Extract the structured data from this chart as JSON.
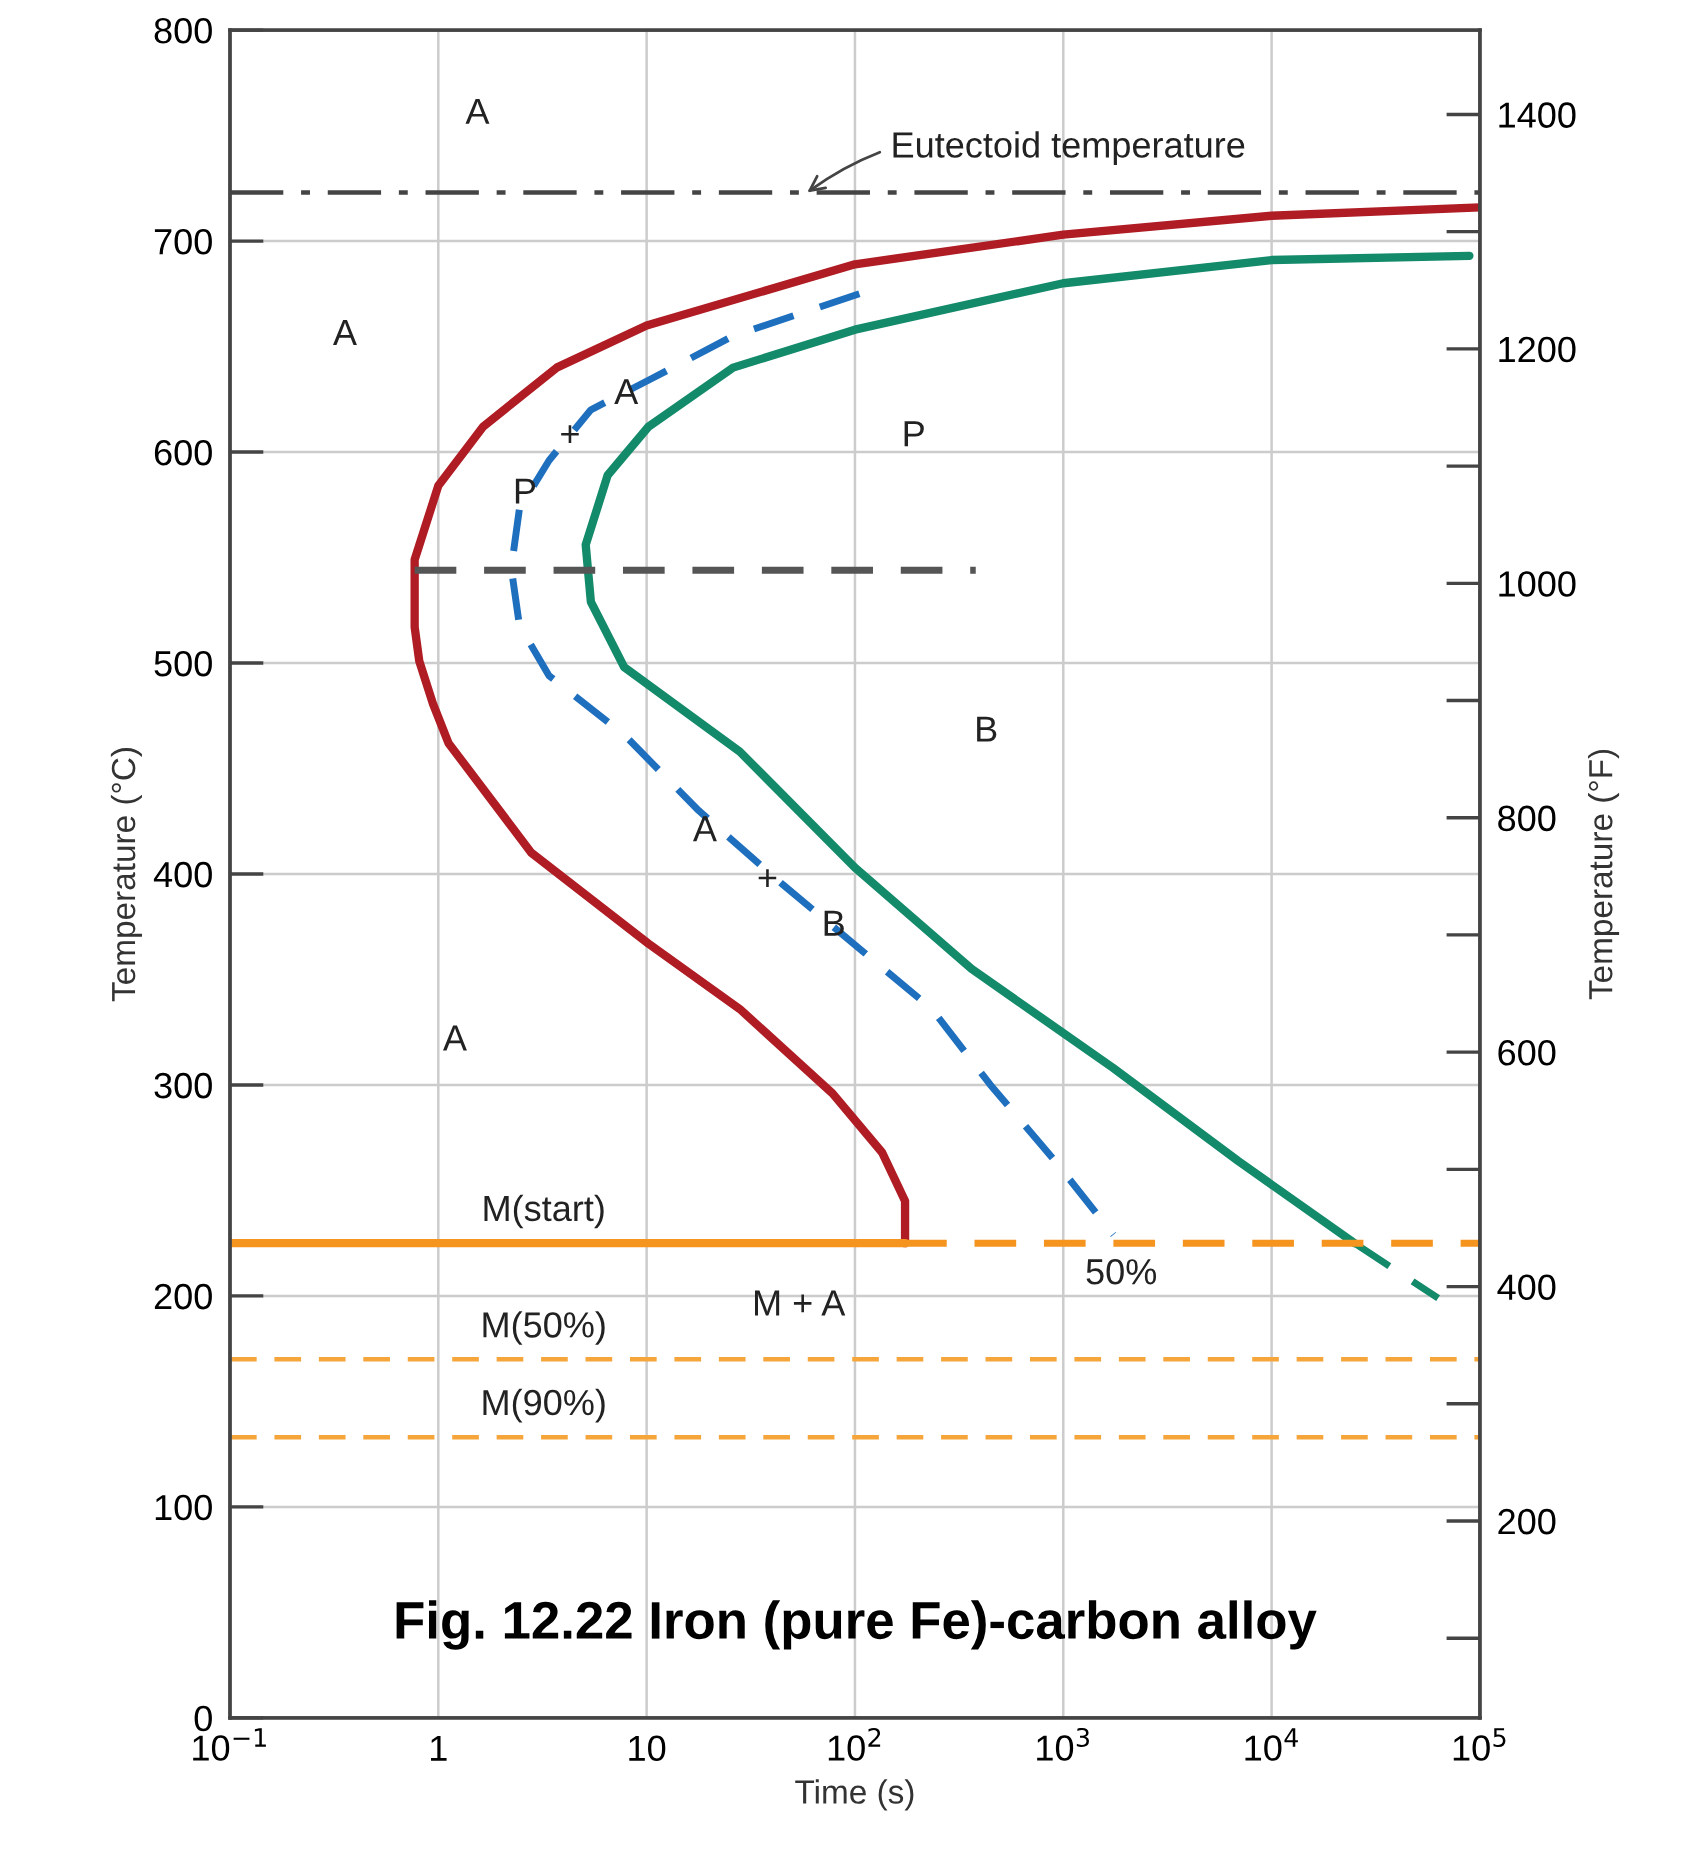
{
  "chart_data": {
    "type": "line",
    "title": "Fig. 12.22 Iron (pure Fe)-carbon alloy",
    "xlabel": "Time (s)",
    "ylabel": "Temperature (°C)",
    "y2label": "Temperature (°F)",
    "log": "x",
    "grid": true,
    "legend": false,
    "marker": "none",
    "xlim": [
      0.1,
      100000
    ],
    "xticks": [
      {
        "value": 0.1,
        "label": "10$^{−1}$"
      },
      1,
      10,
      {
        "value": 100,
        "label": "10$^{2}$"
      },
      {
        "value": 1000,
        "label": "10$^{3}$"
      },
      {
        "value": 10000,
        "label": "10$^{4}$"
      },
      {
        "value": 100000,
        "label": "10$^{5}$"
      }
    ],
    "ylim": [
      0,
      800
    ],
    "yticks": [
      0,
      100,
      200,
      300,
      400,
      500,
      600,
      700,
      800
    ],
    "y2lim": [
      32,
      1472
    ],
    "y2ticks": [
      200,
      400,
      600,
      800,
      1000,
      1200,
      1400
    ],
    "series": [
      {
        "color": "#b01c24",
        "line_style": "solid",
        "x": [
          100000,
          10000,
          1000,
          100,
          10,
          3.7,
          1.64,
          1.0,
          0.77,
          0.77,
          0.81,
          0.94,
          1.12,
          2.8,
          10.2,
          28,
          78,
          135,
          174,
          174
        ],
        "values": [
          716,
          712,
          703,
          689,
          660,
          640,
          612,
          584,
          549,
          517,
          501,
          481,
          462,
          410,
          367,
          336,
          296,
          268,
          245,
          225
        ]
      },
      {
        "color": "#1f6fbf",
        "line_style": "dashed",
        "x": [
          105,
          26,
          10.2,
          5.4,
          3.4,
          2.45,
          2.24,
          2.45,
          3.4,
          7.8,
          17.8,
          45,
          110,
          234,
          447,
          912,
          1740
        ],
        "values": [
          675,
          655,
          634,
          620,
          596,
          573,
          545,
          518,
          494,
          466,
          430,
          395,
          363,
          336,
          300,
          264,
          229
        ]
      },
      {
        "color": "#138a6a",
        "line_style": "solid",
        "x": [
          89000,
          10000,
          1000,
          100,
          26,
          10.2,
          6.5,
          5.1,
          5.4,
          7.8,
          28,
          100,
          363,
          1740,
          6900,
          25000
        ],
        "values": [
          693,
          691,
          680,
          658,
          640,
          612,
          589,
          556,
          529,
          498,
          458,
          403,
          355,
          308,
          264,
          225
        ]
      },
      {
        "color": "#138a6a",
        "line_style": "dashed",
        "x": [
          25000,
          63000
        ],
        "values": [
          225,
          199
        ]
      },
      {
        "color": "#f5941f",
        "line_style": "solid",
        "x": [
          0.1,
          174
        ],
        "values": [
          225,
          225
        ]
      },
      {
        "color": "#f5941f",
        "line_style": "dashed",
        "x": [
          174,
          100000
        ],
        "values": [
          225,
          225
        ]
      },
      {
        "color": "#555555",
        "line_style": "dashed",
        "x": [
          0.77,
          380
        ],
        "values": [
          544,
          544
        ]
      }
    ],
    "ref_lines": [
      {
        "axis": "y",
        "value": 723,
        "label": null,
        "color": "#444444",
        "line_style": "dashdot"
      },
      {
        "axis": "y",
        "value": 170,
        "label": null,
        "color": "#f5a53a",
        "line_style": "dashed"
      },
      {
        "axis": "y",
        "value": 133,
        "label": null,
        "color": "#f5a53a",
        "line_style": "dashed"
      }
    ],
    "annotations": [
      {
        "text": "Eutectoid temperature",
        "x": 59,
        "y": 723
      },
      "A",
      "A",
      "P",
      "B",
      "A",
      "M + A",
      "50%",
      "M(start)",
      "M(50%)",
      "M(90%)",
      "A",
      "+",
      "P",
      "A",
      "+",
      "B"
    ]
  }
}
